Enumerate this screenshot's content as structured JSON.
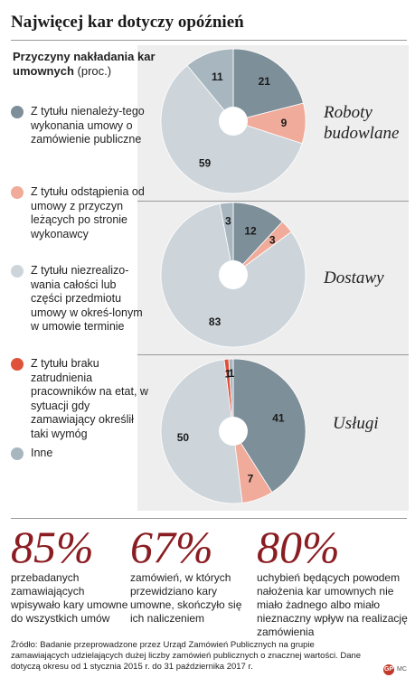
{
  "title": "Najwięcej kar dotyczy opóźnień",
  "legend": {
    "heading": "Przyczyny nakładania kar umownych",
    "unit": "(proc.)",
    "items": [
      {
        "label": "Z tytułu nienależy-tego wykonania umowy o zamówienie publiczne",
        "color": "#7d8f99"
      },
      {
        "label": "Z tytułu odstąpienia od umowy z przyczyn leżących po stronie wykonawcy",
        "color": "#f0ab9a"
      },
      {
        "label": "Z tytułu niezrealizo-wania całości lub części przedmiotu umowy w okreś-lonym w umowie terminie",
        "color": "#cdd5db"
      },
      {
        "label": "Z tytułu braku zatrudnienia pracowników na etat, w sytuacji gdy zamawiający określił taki wymóg",
        "color": "#e0513a"
      },
      {
        "label": "Inne",
        "color": "#a8b6c0"
      }
    ]
  },
  "chart_data": [
    {
      "type": "pie",
      "title": "Roboty budowlane",
      "categories": [
        "Z tytułu nienależytego wykonania umowy o zamówienie publiczne",
        "Z tytułu odstąpienia od umowy z przyczyn leżących po stronie wykonawcy",
        "Z tytułu niezrealizowania całości lub części przedmiotu umowy w określonym w umowie terminie",
        "Inne"
      ],
      "values": [
        21,
        9,
        59,
        11
      ],
      "value_labels": [
        "21",
        "9",
        "59",
        "11"
      ],
      "colors": [
        "#7d8f99",
        "#f0ab9a",
        "#cdd5db",
        "#a8b6c0"
      ]
    },
    {
      "type": "pie",
      "title": "Dostawy",
      "categories": [
        "Z tytułu nienależytego wykonania umowy o zamówienie publiczne",
        "Z tytułu odstąpienia od umowy z przyczyn leżących po stronie wykonawcy",
        "Z tytułu niezrealizowania całości lub części przedmiotu umowy w określonym w umowie terminie",
        "Inne"
      ],
      "values": [
        12,
        3,
        83,
        3
      ],
      "value_labels": [
        "12",
        "3",
        "83",
        "3"
      ],
      "colors": [
        "#7d8f99",
        "#f0ab9a",
        "#cdd5db",
        "#a8b6c0"
      ]
    },
    {
      "type": "pie",
      "title": "Usługi",
      "categories": [
        "Z tytułu nienależytego wykonania umowy o zamówienie publiczne",
        "Z tytułu odstąpienia od umowy z przyczyn leżących po stronie wykonawcy",
        "Z tytułu niezrealizowania całości lub części przedmiotu umowy w określonym w umowie terminie",
        "Z tytułu braku zatrudnienia pracowników na etat, w sytuacji gdy zamawiający określił taki wymóg",
        "Inne"
      ],
      "values": [
        41,
        7,
        50,
        1,
        1
      ],
      "value_labels": [
        "41",
        "7",
        "50",
        "1",
        "1"
      ],
      "colors": [
        "#7d8f99",
        "#f0ab9a",
        "#cdd5db",
        "#e0513a",
        "#a8b6c0"
      ]
    }
  ],
  "stats": [
    {
      "value": "85%",
      "text": "przebadanych zamawiających wpisywało kary umowne do wszystkich umów"
    },
    {
      "value": "67%",
      "text": "zamówień, w których przewidziano kary umowne, skończyło się ich naliczeniem"
    },
    {
      "value": "80%",
      "text": "uchybień będących powodem nałożenia kar umownych nie miało żadnego albo miało nieznaczny wpływ na realizację zamówienia"
    }
  ],
  "source": "Źródło: Badanie przeprowadzone przez Urząd Zamówień Publicznych na grupie zamawiających udzielających dużej liczby zamówień publicznych o znacznej wartości. Dane dotyczą okresu od 1 stycznia 2015 r. do 31 października 2017 r.",
  "logo": {
    "mark": "GP",
    "suffix": "MC"
  }
}
